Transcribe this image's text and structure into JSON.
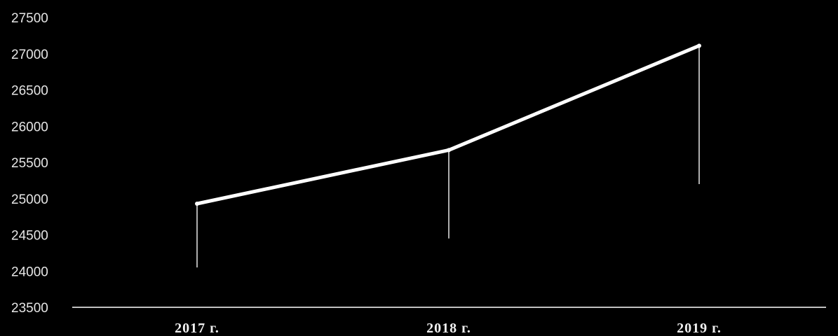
{
  "chart_data": {
    "type": "line",
    "title": "",
    "xlabel": "",
    "ylabel": "",
    "categories": [
      "2017 г.",
      "2018 г.",
      "2019 г."
    ],
    "series": [
      {
        "values": [
          24930,
          25670,
          27110
        ]
      }
    ],
    "drop_line_bottoms": [
      24050,
      24450,
      25200
    ],
    "ylim": [
      23500,
      27500
    ],
    "yticks": [
      23500,
      24000,
      24500,
      25000,
      25500,
      26000,
      26500,
      27000,
      27500
    ],
    "grid": false,
    "legend": "none",
    "colors": {
      "background": "#000000",
      "line": "#ffffff",
      "text": "#e6e6e6"
    }
  }
}
